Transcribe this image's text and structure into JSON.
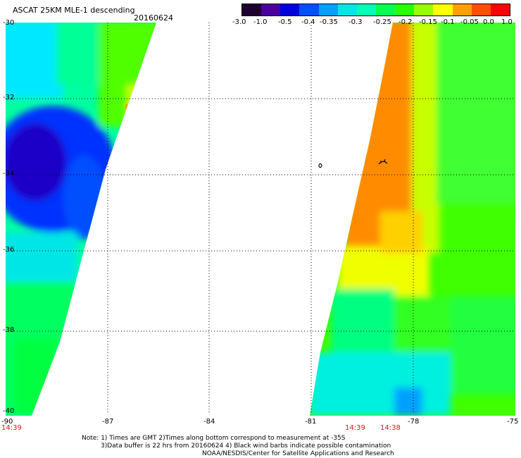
{
  "header": {
    "title": "ASCAT 25KM MLE-1 descending",
    "date": "20160624"
  },
  "colorbar": {
    "tick_labels": [
      "-3.0",
      "-1.0",
      "-0.5",
      "-0.4",
      "-0.35",
      "-0.3",
      "-0.25",
      "-0.2",
      "-0.15",
      "-0.1",
      "-0.05",
      "0.0",
      "1.0"
    ],
    "colors": [
      "#1e0032",
      "#4b00a0",
      "#0000dc",
      "#0050ff",
      "#00a0ff",
      "#00e6e6",
      "#00ffb4",
      "#00ff50",
      "#28ff00",
      "#96ff00",
      "#ffff00",
      "#ffa000",
      "#ff5000",
      "#ff0000"
    ]
  },
  "axes": {
    "lat_labels": [
      "-30",
      "-32",
      "-34",
      "-36",
      "-38",
      "-40"
    ],
    "lon_labels": [
      "-90",
      "-87",
      "-84",
      "-81",
      "-78",
      "-75"
    ]
  },
  "pass_times": {
    "left": "14:39",
    "right_a": "14:39",
    "right_b": "14:38"
  },
  "notes": {
    "line1": "Note: 1) Times are GMT 2)Times along bottom correspond to measurement at -35S",
    "line2": "3)Data buffer is 22 hrs from 20160624 4) Black wind barbs indicate possible contamination",
    "line3": "NOAA/NESDIS/Center for Satellite Applications and Research"
  }
}
